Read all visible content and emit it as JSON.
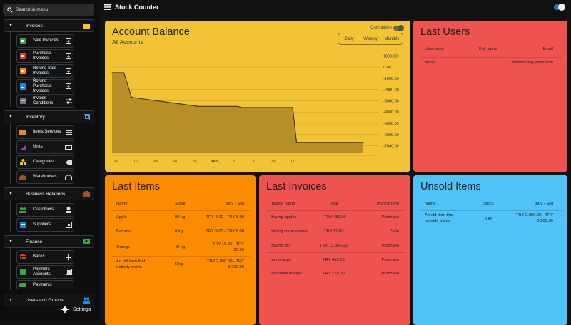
{
  "sidebar": {
    "search_placeholder": "Search in menu",
    "groups": {
      "invoices": "Invoices",
      "inventory": "Inventory",
      "business": "Business Relations",
      "finance": "Finance",
      "users": "Users and Groups"
    },
    "items": {
      "sale_invoices": "Sale Invoices",
      "purchase_invoices": "Purchase Invoices",
      "refund_sale": "Refund Sale Invoices",
      "refund_purchase": "Refund Purchase Invoices",
      "invoice_conditions": "Invoice Conditions",
      "items_services": "Items/Services",
      "units": "Units",
      "categories": "Categories",
      "warehouses": "Warehouses",
      "customers": "Customers",
      "suppliers": "Suppliers",
      "banks": "Banks",
      "payment_accounts": "Payment Accounts",
      "payments": "Payments"
    },
    "settings": "Settings"
  },
  "topbar": {
    "title": "Stock Counter"
  },
  "balance": {
    "title": "Account Balance",
    "subtitle": "All Accounts",
    "cumulative": "Cumulative",
    "segments": [
      "Daily",
      "Weekly",
      "Monthly"
    ]
  },
  "chart_data": {
    "type": "area",
    "x_ticks": [
      "12",
      "16",
      "20",
      "24",
      "28",
      "Sep",
      "5",
      "9",
      "13",
      "17"
    ],
    "y_ticks": [
      "1000.00",
      "0.00",
      "-1000.00",
      "-2000.00",
      "-3000.00",
      "-4000.00",
      "-5000.00",
      "-6000.00",
      "-7000.00"
    ],
    "ylim": [
      -7600,
      1400
    ],
    "x": [
      0,
      3,
      5,
      22,
      23,
      24.5,
      32,
      33,
      34,
      46,
      47,
      64
    ],
    "values": [
      -500,
      -500,
      -2700,
      -3500,
      -3500,
      -3500,
      -3500,
      -3600,
      -3600,
      -3600,
      -6700,
      -6700
    ],
    "xlim": [
      0,
      68
    ],
    "x_tick_positions": [
      1,
      6,
      11,
      16,
      21,
      26,
      31,
      36,
      41,
      46
    ],
    "grid": true,
    "fill_color": "#b08a26",
    "line_color": "#333333"
  },
  "last_users": {
    "title": "Last Users",
    "headers": [
      "Username",
      "Full name",
      "Email"
    ],
    "rows": [
      [
        "apollo",
        "",
        "abidinsefa@gmail.com"
      ]
    ]
  },
  "last_items": {
    "title": "Last Items",
    "headers": [
      "Name",
      "Stock",
      "Buy - Sell"
    ],
    "rows": [
      [
        "Apple",
        "98 kg",
        "TRY 4.00 - TRY 5.00"
      ],
      [
        "Banana",
        "0 kg",
        "TRY 5.00 - TRY 6.00"
      ],
      [
        "Orange",
        "40 kg",
        "TRY 15.00 - TRY 25.00"
      ],
      [
        "An old item that nobody wants",
        "5 kg",
        "TRY 2,050.00 - TRY 3,200.00"
      ]
    ]
  },
  "last_invoices": {
    "title": "Last Invoices",
    "headers": [
      "Invoice name",
      "Total",
      "Invoice type"
    ],
    "rows": [
      [
        "Buying apples",
        "TRY 480.00",
        "Purchase"
      ],
      [
        "Selling some apples",
        "TRY 12.00",
        "Sale"
      ],
      [
        "Buying pcs",
        "TRY 12,300.00",
        "Purchase"
      ],
      [
        "buy orange",
        "TRY 450.00",
        "Purchase"
      ],
      [
        "buy more orange",
        "TRY 270.00",
        "Purchase"
      ]
    ]
  },
  "unsold_items": {
    "title": "Unsold Items",
    "headers": [
      "Name",
      "Stock",
      "Buy - Sell"
    ],
    "rows": [
      [
        "An old item that nobody wants",
        "5 kg",
        "TRY 2,050.00 - TRY 3,200.00"
      ]
    ]
  },
  "colors": {
    "balance_bg": "#f3c336",
    "users_bg": "#ef5350",
    "items_bg": "#fb8c00",
    "invoices_bg": "#ef5350",
    "unsold_bg": "#4fc3f7"
  }
}
